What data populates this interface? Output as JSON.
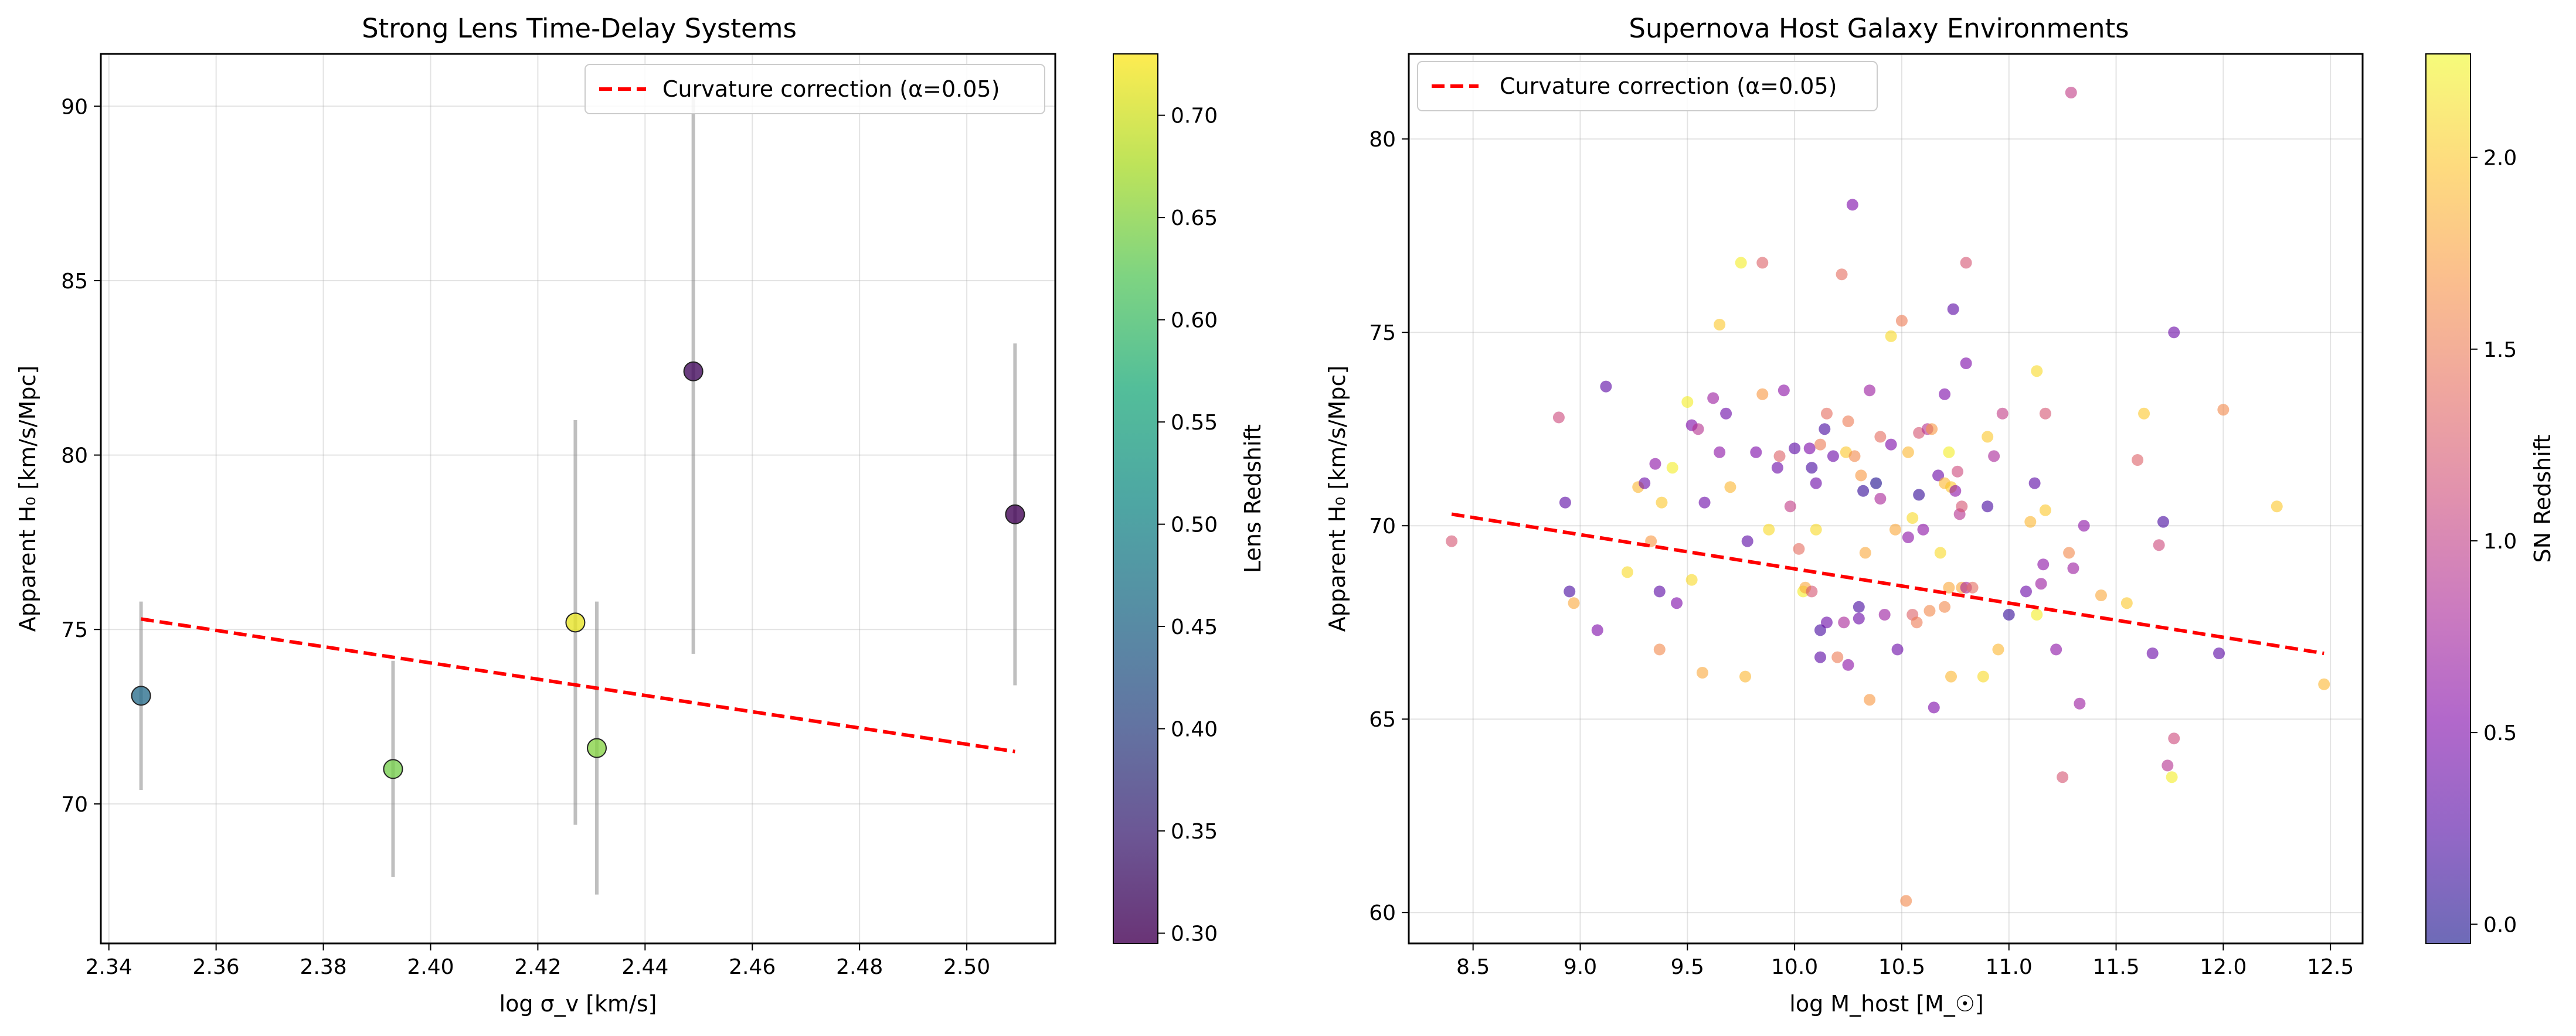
{
  "chart_data": [
    {
      "type": "scatter",
      "title": "Strong Lens Time-Delay Systems",
      "xlabel": "log σ_v [km/s]",
      "ylabel": "Apparent H₀ [km/s/Mpc]",
      "xlim": [
        2.3385,
        2.5165
      ],
      "ylim": [
        66.0,
        91.5
      ],
      "xticks": [
        2.34,
        2.36,
        2.38,
        2.4,
        2.42,
        2.44,
        2.46,
        2.48,
        2.5
      ],
      "xtick_labels": [
        "2.34",
        "2.36",
        "2.38",
        "2.40",
        "2.42",
        "2.44",
        "2.46",
        "2.48",
        "2.50"
      ],
      "yticks": [
        70,
        75,
        80,
        85,
        90
      ],
      "ytick_labels": [
        "70",
        "75",
        "80",
        "85",
        "90"
      ],
      "grid": true,
      "legend_position": "top-right",
      "points": [
        {
          "x": 2.346,
          "y": 73.1,
          "err_low": 70.4,
          "err_high": 75.8,
          "z": 0.455
        },
        {
          "x": 2.393,
          "y": 71.0,
          "err_low": 67.9,
          "err_high": 74.1,
          "z": 0.64
        },
        {
          "x": 2.427,
          "y": 75.2,
          "err_low": 69.4,
          "err_high": 81.0,
          "z": 0.715
        },
        {
          "x": 2.431,
          "y": 71.6,
          "err_low": 67.4,
          "err_high": 75.8,
          "z": 0.65
        },
        {
          "x": 2.449,
          "y": 82.4,
          "err_low": 74.3,
          "err_high": 90.5,
          "z": 0.31
        },
        {
          "x": 2.509,
          "y": 78.3,
          "err_low": 73.4,
          "err_high": 83.2,
          "z": 0.3
        }
      ],
      "fit_line": {
        "label": "Curvature correction (α=0.05)",
        "x": [
          2.346,
          2.509
        ],
        "y": [
          75.3,
          71.5
        ],
        "color": "#ff0000"
      },
      "colorbar": {
        "label": "Lens Redshift",
        "colormap": "viridis",
        "range": [
          0.295,
          0.73
        ],
        "ticks": [
          0.3,
          0.35,
          0.4,
          0.45,
          0.5,
          0.55,
          0.6,
          0.65,
          0.7
        ],
        "tick_labels": [
          "0.30",
          "0.35",
          "0.40",
          "0.45",
          "0.50",
          "0.55",
          "0.60",
          "0.65",
          "0.70"
        ]
      }
    },
    {
      "type": "scatter",
      "title": "Supernova Host Galaxy Environments",
      "xlabel": "log M_host [M_☉]",
      "ylabel": "Apparent H₀ [km/s/Mpc]",
      "xlim": [
        8.2,
        12.65
      ],
      "ylim": [
        59.2,
        82.2
      ],
      "xticks": [
        8.5,
        9.0,
        9.5,
        10.0,
        10.5,
        11.0,
        11.5,
        12.0,
        12.5
      ],
      "xtick_labels": [
        "8.5",
        "9.0",
        "9.5",
        "10.0",
        "10.5",
        "11.0",
        "11.5",
        "12.0",
        "12.5"
      ],
      "yticks": [
        60,
        65,
        70,
        75,
        80
      ],
      "ytick_labels": [
        "60",
        "65",
        "70",
        "75",
        "80"
      ],
      "grid": true,
      "legend_position": "top-left",
      "points": [
        {
          "x": 8.4,
          "y": 69.6,
          "z": 1.2
        },
        {
          "x": 8.9,
          "y": 72.8,
          "z": 1.1
        },
        {
          "x": 8.93,
          "y": 70.6,
          "z": 0.3
        },
        {
          "x": 8.95,
          "y": 68.3,
          "z": 0.2
        },
        {
          "x": 8.97,
          "y": 68.0,
          "z": 1.8
        },
        {
          "x": 9.08,
          "y": 67.3,
          "z": 0.5
        },
        {
          "x": 9.12,
          "y": 73.6,
          "z": 0.3
        },
        {
          "x": 9.22,
          "y": 68.8,
          "z": 2.1
        },
        {
          "x": 9.27,
          "y": 71.0,
          "z": 1.9
        },
        {
          "x": 9.3,
          "y": 71.1,
          "z": 0.4
        },
        {
          "x": 9.33,
          "y": 69.6,
          "z": 1.7
        },
        {
          "x": 9.35,
          "y": 71.6,
          "z": 0.6
        },
        {
          "x": 9.37,
          "y": 68.3,
          "z": 0.3
        },
        {
          "x": 9.37,
          "y": 66.8,
          "z": 1.6
        },
        {
          "x": 9.38,
          "y": 70.6,
          "z": 2.0
        },
        {
          "x": 9.43,
          "y": 71.5,
          "z": 2.2
        },
        {
          "x": 9.45,
          "y": 68.0,
          "z": 0.5
        },
        {
          "x": 9.5,
          "y": 73.2,
          "z": 2.2
        },
        {
          "x": 9.52,
          "y": 72.6,
          "z": 0.5
        },
        {
          "x": 9.52,
          "y": 68.6,
          "z": 2.1
        },
        {
          "x": 9.55,
          "y": 72.5,
          "z": 0.9
        },
        {
          "x": 9.57,
          "y": 66.2,
          "z": 1.8
        },
        {
          "x": 9.58,
          "y": 70.6,
          "z": 0.4
        },
        {
          "x": 9.62,
          "y": 73.3,
          "z": 0.7
        },
        {
          "x": 9.65,
          "y": 71.9,
          "z": 0.6
        },
        {
          "x": 9.65,
          "y": 75.2,
          "z": 2.0
        },
        {
          "x": 9.68,
          "y": 72.9,
          "z": 0.4
        },
        {
          "x": 9.7,
          "y": 71.0,
          "z": 1.9
        },
        {
          "x": 9.75,
          "y": 76.8,
          "z": 2.2
        },
        {
          "x": 9.77,
          "y": 66.1,
          "z": 1.9
        },
        {
          "x": 9.78,
          "y": 69.6,
          "z": 0.3
        },
        {
          "x": 9.82,
          "y": 71.9,
          "z": 0.5
        },
        {
          "x": 9.85,
          "y": 73.4,
          "z": 1.7
        },
        {
          "x": 9.85,
          "y": 76.8,
          "z": 1.3
        },
        {
          "x": 9.88,
          "y": 69.9,
          "z": 2.1
        },
        {
          "x": 9.92,
          "y": 71.5,
          "z": 0.4
        },
        {
          "x": 9.93,
          "y": 71.8,
          "z": 1.3
        },
        {
          "x": 9.95,
          "y": 73.5,
          "z": 0.6
        },
        {
          "x": 9.98,
          "y": 70.5,
          "z": 1.0
        },
        {
          "x": 10.0,
          "y": 72.0,
          "z": 0.3
        },
        {
          "x": 10.02,
          "y": 69.4,
          "z": 1.4
        },
        {
          "x": 10.04,
          "y": 68.3,
          "z": 2.2
        },
        {
          "x": 10.05,
          "y": 68.4,
          "z": 1.8
        },
        {
          "x": 10.07,
          "y": 72.0,
          "z": 0.5
        },
        {
          "x": 10.08,
          "y": 71.5,
          "z": 0.2
        },
        {
          "x": 10.08,
          "y": 68.3,
          "z": 1.2
        },
        {
          "x": 10.1,
          "y": 71.1,
          "z": 0.4
        },
        {
          "x": 10.1,
          "y": 69.9,
          "z": 2.1
        },
        {
          "x": 10.12,
          "y": 72.1,
          "z": 1.5
        },
        {
          "x": 10.12,
          "y": 67.3,
          "z": 0.2
        },
        {
          "x": 10.12,
          "y": 66.6,
          "z": 0.3
        },
        {
          "x": 10.14,
          "y": 72.5,
          "z": 0.2
        },
        {
          "x": 10.15,
          "y": 67.5,
          "z": 0.4
        },
        {
          "x": 10.15,
          "y": 72.9,
          "z": 1.4
        },
        {
          "x": 10.18,
          "y": 71.8,
          "z": 0.4
        },
        {
          "x": 10.2,
          "y": 66.6,
          "z": 1.5
        },
        {
          "x": 10.22,
          "y": 76.5,
          "z": 1.4
        },
        {
          "x": 10.23,
          "y": 67.5,
          "z": 0.8
        },
        {
          "x": 10.24,
          "y": 71.9,
          "z": 2.0
        },
        {
          "x": 10.25,
          "y": 72.7,
          "z": 1.5
        },
        {
          "x": 10.25,
          "y": 66.4,
          "z": 0.6
        },
        {
          "x": 10.27,
          "y": 78.3,
          "z": 0.5
        },
        {
          "x": 10.28,
          "y": 71.8,
          "z": 1.6
        },
        {
          "x": 10.3,
          "y": 67.9,
          "z": 0.2
        },
        {
          "x": 10.3,
          "y": 67.6,
          "z": 0.4
        },
        {
          "x": 10.31,
          "y": 71.3,
          "z": 1.7
        },
        {
          "x": 10.32,
          "y": 70.9,
          "z": 0.1
        },
        {
          "x": 10.33,
          "y": 69.3,
          "z": 1.8
        },
        {
          "x": 10.35,
          "y": 73.5,
          "z": 0.7
        },
        {
          "x": 10.35,
          "y": 65.5,
          "z": 1.7
        },
        {
          "x": 10.38,
          "y": 71.1,
          "z": 0.0
        },
        {
          "x": 10.4,
          "y": 72.3,
          "z": 1.4
        },
        {
          "x": 10.4,
          "y": 70.7,
          "z": 0.8
        },
        {
          "x": 10.42,
          "y": 67.7,
          "z": 0.7
        },
        {
          "x": 10.45,
          "y": 74.9,
          "z": 2.1
        },
        {
          "x": 10.45,
          "y": 72.1,
          "z": 0.5
        },
        {
          "x": 10.47,
          "y": 69.9,
          "z": 1.8
        },
        {
          "x": 10.48,
          "y": 66.8,
          "z": 0.4
        },
        {
          "x": 10.5,
          "y": 75.3,
          "z": 1.5
        },
        {
          "x": 10.52,
          "y": 60.3,
          "z": 1.6
        },
        {
          "x": 10.53,
          "y": 69.7,
          "z": 0.6
        },
        {
          "x": 10.53,
          "y": 71.9,
          "z": 1.9
        },
        {
          "x": 10.55,
          "y": 70.2,
          "z": 2.1
        },
        {
          "x": 10.55,
          "y": 67.7,
          "z": 1.3
        },
        {
          "x": 10.57,
          "y": 67.5,
          "z": 1.5
        },
        {
          "x": 10.58,
          "y": 70.8,
          "z": 0.1
        },
        {
          "x": 10.58,
          "y": 72.4,
          "z": 1.2
        },
        {
          "x": 10.6,
          "y": 69.9,
          "z": 0.6
        },
        {
          "x": 10.62,
          "y": 72.5,
          "z": 0.9
        },
        {
          "x": 10.63,
          "y": 67.8,
          "z": 1.6
        },
        {
          "x": 10.64,
          "y": 72.5,
          "z": 1.7
        },
        {
          "x": 10.65,
          "y": 65.3,
          "z": 0.5
        },
        {
          "x": 10.67,
          "y": 71.3,
          "z": 0.4
        },
        {
          "x": 10.68,
          "y": 69.3,
          "z": 2.1
        },
        {
          "x": 10.7,
          "y": 73.4,
          "z": 0.5
        },
        {
          "x": 10.7,
          "y": 71.1,
          "z": 1.9
        },
        {
          "x": 10.7,
          "y": 67.9,
          "z": 1.6
        },
        {
          "x": 10.72,
          "y": 68.4,
          "z": 1.8
        },
        {
          "x": 10.72,
          "y": 71.9,
          "z": 2.2
        },
        {
          "x": 10.73,
          "y": 66.1,
          "z": 1.9
        },
        {
          "x": 10.73,
          "y": 71.0,
          "z": 2.0
        },
        {
          "x": 10.74,
          "y": 75.6,
          "z": 0.3
        },
        {
          "x": 10.75,
          "y": 70.9,
          "z": 0.6
        },
        {
          "x": 10.76,
          "y": 71.4,
          "z": 1.1
        },
        {
          "x": 10.77,
          "y": 70.3,
          "z": 0.9
        },
        {
          "x": 10.78,
          "y": 70.5,
          "z": 1.2
        },
        {
          "x": 10.78,
          "y": 68.4,
          "z": 1.8
        },
        {
          "x": 10.8,
          "y": 76.8,
          "z": 1.2
        },
        {
          "x": 10.8,
          "y": 74.2,
          "z": 0.5
        },
        {
          "x": 10.8,
          "y": 68.4,
          "z": 0.8
        },
        {
          "x": 10.83,
          "y": 68.4,
          "z": 1.4
        },
        {
          "x": 10.88,
          "y": 66.1,
          "z": 2.1
        },
        {
          "x": 10.9,
          "y": 70.5,
          "z": 0.2
        },
        {
          "x": 10.9,
          "y": 72.3,
          "z": 2.0
        },
        {
          "x": 10.93,
          "y": 71.8,
          "z": 0.8
        },
        {
          "x": 10.95,
          "y": 66.8,
          "z": 1.9
        },
        {
          "x": 10.97,
          "y": 72.9,
          "z": 1.0
        },
        {
          "x": 11.0,
          "y": 67.7,
          "z": 0.1
        },
        {
          "x": 11.08,
          "y": 68.3,
          "z": 0.4
        },
        {
          "x": 11.1,
          "y": 70.1,
          "z": 1.9
        },
        {
          "x": 11.12,
          "y": 71.1,
          "z": 0.3
        },
        {
          "x": 11.13,
          "y": 67.7,
          "z": 2.2
        },
        {
          "x": 11.13,
          "y": 74.0,
          "z": 2.1
        },
        {
          "x": 11.15,
          "y": 68.5,
          "z": 0.7
        },
        {
          "x": 11.16,
          "y": 69.0,
          "z": 0.6
        },
        {
          "x": 11.17,
          "y": 72.9,
          "z": 1.2
        },
        {
          "x": 11.17,
          "y": 70.4,
          "z": 2.0
        },
        {
          "x": 11.22,
          "y": 66.8,
          "z": 0.6
        },
        {
          "x": 11.25,
          "y": 63.5,
          "z": 1.2
        },
        {
          "x": 11.28,
          "y": 69.3,
          "z": 1.6
        },
        {
          "x": 11.29,
          "y": 81.2,
          "z": 1.0
        },
        {
          "x": 11.3,
          "y": 68.9,
          "z": 0.7
        },
        {
          "x": 11.33,
          "y": 65.4,
          "z": 0.7
        },
        {
          "x": 11.35,
          "y": 70.0,
          "z": 0.6
        },
        {
          "x": 11.43,
          "y": 68.2,
          "z": 1.8
        },
        {
          "x": 11.55,
          "y": 68.0,
          "z": 2.0
        },
        {
          "x": 11.6,
          "y": 71.7,
          "z": 1.3
        },
        {
          "x": 11.63,
          "y": 72.9,
          "z": 2.0
        },
        {
          "x": 11.67,
          "y": 66.7,
          "z": 0.4
        },
        {
          "x": 11.7,
          "y": 69.5,
          "z": 1.1
        },
        {
          "x": 11.72,
          "y": 70.1,
          "z": 0.2
        },
        {
          "x": 11.74,
          "y": 63.8,
          "z": 0.9
        },
        {
          "x": 11.76,
          "y": 63.5,
          "z": 2.2
        },
        {
          "x": 11.77,
          "y": 64.5,
          "z": 1.1
        },
        {
          "x": 11.77,
          "y": 75.0,
          "z": 0.4
        },
        {
          "x": 11.98,
          "y": 66.7,
          "z": 0.3
        },
        {
          "x": 12.0,
          "y": 73.0,
          "z": 1.6
        },
        {
          "x": 12.25,
          "y": 70.5,
          "z": 2.0
        },
        {
          "x": 12.47,
          "y": 65.9,
          "z": 1.9
        }
      ],
      "fit_line": {
        "label": "Curvature correction (α=0.05)",
        "x": [
          8.4,
          12.47
        ],
        "y": [
          70.3,
          66.7
        ],
        "color": "#ff0000"
      },
      "colorbar": {
        "label": "SN Redshift",
        "colormap": "plasma",
        "range": [
          -0.05,
          2.27
        ],
        "ticks": [
          0.0,
          0.5,
          1.0,
          1.5,
          2.0
        ],
        "tick_labels": [
          "0.0",
          "0.5",
          "1.0",
          "1.5",
          "2.0"
        ]
      }
    }
  ]
}
